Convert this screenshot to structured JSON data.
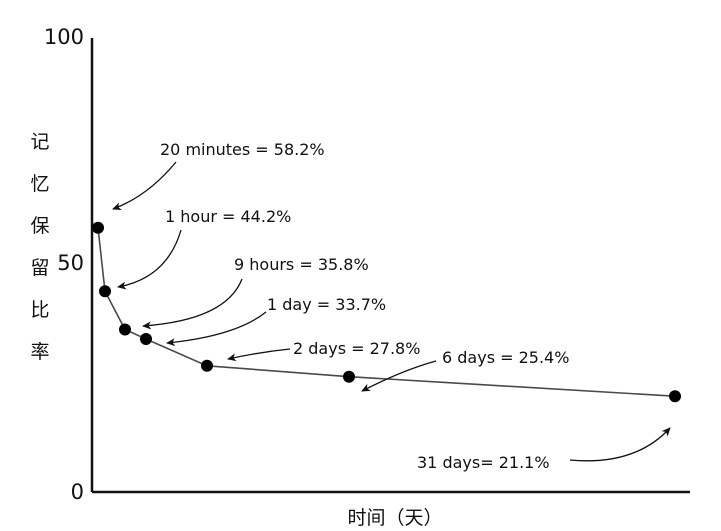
{
  "chart_data": {
    "type": "line",
    "title": "",
    "ylabel": "记忆保留比率",
    "xlabel": "时间（天）",
    "ylim": [
      0,
      100
    ],
    "y_ticks": [
      "0",
      "50",
      "100"
    ],
    "grid": false,
    "legend": "none",
    "colors": {
      "line": "#4a4a4a",
      "marker": "#000000",
      "text": "#111111"
    },
    "points": [
      {
        "x": 0.0139,
        "y": 58.2,
        "label": "20 minutes = 58.2%"
      },
      {
        "x": 0.0417,
        "y": 44.2,
        "label": "1 hour = 44.2%"
      },
      {
        "x": 0.375,
        "y": 35.8,
        "label": "9 hours = 35.8%"
      },
      {
        "x": 1,
        "y": 33.7,
        "label": "1 day = 33.7%"
      },
      {
        "x": 2,
        "y": 27.8,
        "label": "2 days = 27.8%"
      },
      {
        "x": 6,
        "y": 25.4,
        "label": "6 days = 25.4%"
      },
      {
        "x": 31,
        "y": 21.1,
        "label": "31 days= 21.1%"
      }
    ]
  }
}
